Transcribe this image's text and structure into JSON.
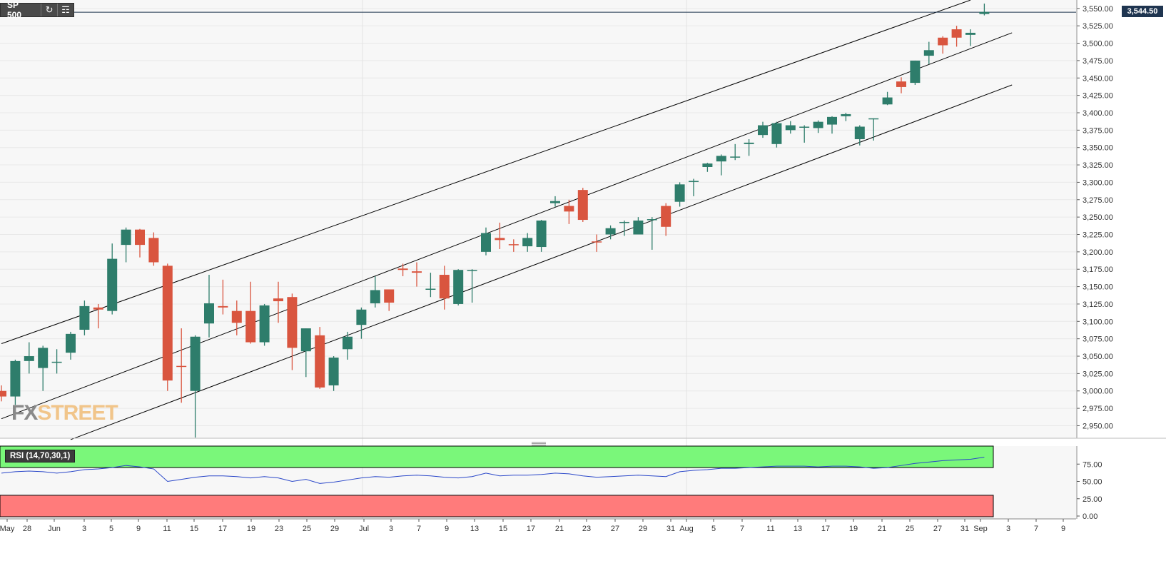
{
  "header": {
    "symbol": "SP 500",
    "refresh_icon": "refresh-icon",
    "settings_icon": "indicators-icon"
  },
  "last_price_label": "3,544.50",
  "watermark": {
    "part1": "FX",
    "part2": "STREET"
  },
  "rsi_label": "RSI (14,70,30,1)",
  "colors": {
    "up": "#2e7d6b",
    "down": "#d9553f",
    "grid": "#e8e8e8",
    "panel_bg": "#f7f7f7",
    "channel": "#000000",
    "rsi_overbought": "#7af77a",
    "rsi_oversold": "#ff7b7b",
    "rsi_line": "#2a47c9",
    "last_price_tag": "#1f3550"
  },
  "chart_data": [
    {
      "type": "candlestick",
      "title": "SP 500",
      "y_ticks": [
        "3,550.00",
        "3,525.00",
        "3,500.00",
        "3,475.00",
        "3,450.00",
        "3,425.00",
        "3,400.00",
        "3,375.00",
        "3,350.00",
        "3,325.00",
        "3,300.00",
        "3,275.00",
        "3,250.00",
        "3,225.00",
        "3,200.00",
        "3,175.00",
        "3,150.00",
        "3,125.00",
        "3,100.00",
        "3,075.00",
        "3,050.00",
        "3,025.00",
        "3,000.00",
        "2,975.00",
        "2,950.00"
      ],
      "ylim": [
        2932,
        3557
      ],
      "x_ticks": [
        "May",
        "28",
        "Jun",
        "3",
        "5",
        "9",
        "11",
        "15",
        "17",
        "19",
        "23",
        "25",
        "29",
        "Jul",
        "3",
        "7",
        "9",
        "13",
        "15",
        "17",
        "21",
        "23",
        "27",
        "29",
        "31",
        "Aug",
        "5",
        "7",
        "11",
        "13",
        "17",
        "19",
        "21",
        "25",
        "27",
        "31",
        "Sep",
        "3",
        "7",
        "9"
      ],
      "last_price": 3544.5,
      "candles": [
        {
          "o": 3000,
          "h": 3008,
          "l": 2985,
          "c": 2992
        },
        {
          "o": 2992,
          "h": 3045,
          "l": 2980,
          "c": 3043
        },
        {
          "o": 3043,
          "h": 3070,
          "l": 3025,
          "c": 3050
        },
        {
          "o": 3033,
          "h": 3065,
          "l": 3000,
          "c": 3062
        },
        {
          "o": 3042,
          "h": 3060,
          "l": 3025,
          "c": 3042
        },
        {
          "o": 3055,
          "h": 3085,
          "l": 3045,
          "c": 3082
        },
        {
          "o": 3088,
          "h": 3130,
          "l": 3080,
          "c": 3122
        },
        {
          "o": 3120,
          "h": 3125,
          "l": 3090,
          "c": 3117
        },
        {
          "o": 3115,
          "h": 3212,
          "l": 3110,
          "c": 3190
        },
        {
          "o": 3210,
          "h": 3235,
          "l": 3185,
          "c": 3232
        },
        {
          "o": 3232,
          "h": 3233,
          "l": 3192,
          "c": 3210
        },
        {
          "o": 3220,
          "h": 3228,
          "l": 3180,
          "c": 3185
        },
        {
          "o": 3180,
          "h": 3183,
          "l": 3000,
          "c": 3015
        },
        {
          "o": 3036,
          "h": 3090,
          "l": 2983,
          "c": 3035
        },
        {
          "o": 3000,
          "h": 3080,
          "l": 2933,
          "c": 3078
        },
        {
          "o": 3097,
          "h": 3167,
          "l": 3077,
          "c": 3126
        },
        {
          "o": 3122,
          "h": 3160,
          "l": 3110,
          "c": 3120
        },
        {
          "o": 3115,
          "h": 3130,
          "l": 3080,
          "c": 3098
        },
        {
          "o": 3115,
          "h": 3157,
          "l": 3068,
          "c": 3070
        },
        {
          "o": 3070,
          "h": 3125,
          "l": 3065,
          "c": 3123
        },
        {
          "o": 3133,
          "h": 3157,
          "l": 3098,
          "c": 3129
        },
        {
          "o": 3135,
          "h": 3140,
          "l": 3030,
          "c": 3062
        },
        {
          "o": 3057,
          "h": 3090,
          "l": 3020,
          "c": 3090
        },
        {
          "o": 3080,
          "h": 3092,
          "l": 3003,
          "c": 3005
        },
        {
          "o": 3008,
          "h": 3050,
          "l": 3000,
          "c": 3048
        },
        {
          "o": 3060,
          "h": 3085,
          "l": 3045,
          "c": 3078
        },
        {
          "o": 3095,
          "h": 3120,
          "l": 3075,
          "c": 3117
        },
        {
          "o": 3126,
          "h": 3165,
          "l": 3120,
          "c": 3145
        },
        {
          "o": 3146,
          "h": 3145,
          "l": 3115,
          "c": 3127
        },
        {
          "o": 3176,
          "h": 3183,
          "l": 3165,
          "c": 3174
        },
        {
          "o": 3172,
          "h": 3185,
          "l": 3150,
          "c": 3170
        },
        {
          "o": 3147,
          "h": 3170,
          "l": 3135,
          "c": 3147
        },
        {
          "o": 3167,
          "h": 3180,
          "l": 3117,
          "c": 3133
        },
        {
          "o": 3125,
          "h": 3175,
          "l": 3123,
          "c": 3174
        },
        {
          "o": 3174,
          "h": 3175,
          "l": 3127,
          "c": 3174
        },
        {
          "o": 3200,
          "h": 3235,
          "l": 3195,
          "c": 3227
        },
        {
          "o": 3220,
          "h": 3242,
          "l": 3204,
          "c": 3217
        },
        {
          "o": 3211,
          "h": 3218,
          "l": 3200,
          "c": 3210
        },
        {
          "o": 3208,
          "h": 3227,
          "l": 3200,
          "c": 3220
        },
        {
          "o": 3207,
          "h": 3246,
          "l": 3200,
          "c": 3245
        },
        {
          "o": 3270,
          "h": 3280,
          "l": 3265,
          "c": 3273
        },
        {
          "o": 3266,
          "h": 3275,
          "l": 3240,
          "c": 3258
        },
        {
          "o": 3289,
          "h": 3292,
          "l": 3243,
          "c": 3246
        },
        {
          "o": 3215,
          "h": 3225,
          "l": 3200,
          "c": 3214
        },
        {
          "o": 3225,
          "h": 3238,
          "l": 3218,
          "c": 3234
        },
        {
          "o": 3243,
          "h": 3245,
          "l": 3223,
          "c": 3243
        },
        {
          "o": 3225,
          "h": 3250,
          "l": 3225,
          "c": 3245
        },
        {
          "o": 3247,
          "h": 3250,
          "l": 3203,
          "c": 3247
        },
        {
          "o": 3266,
          "h": 3270,
          "l": 3223,
          "c": 3236
        },
        {
          "o": 3272,
          "h": 3300,
          "l": 3265,
          "c": 3297
        },
        {
          "o": 3302,
          "h": 3305,
          "l": 3280,
          "c": 3302
        },
        {
          "o": 3322,
          "h": 3328,
          "l": 3315,
          "c": 3327
        },
        {
          "o": 3330,
          "h": 3340,
          "l": 3310,
          "c": 3338
        },
        {
          "o": 3337,
          "h": 3355,
          "l": 3332,
          "c": 3337
        },
        {
          "o": 3355,
          "h": 3362,
          "l": 3338,
          "c": 3357
        },
        {
          "o": 3368,
          "h": 3387,
          "l": 3364,
          "c": 3382
        },
        {
          "o": 3355,
          "h": 3387,
          "l": 3350,
          "c": 3385
        },
        {
          "o": 3375,
          "h": 3388,
          "l": 3370,
          "c": 3382
        },
        {
          "o": 3380,
          "h": 3382,
          "l": 3357,
          "c": 3380
        },
        {
          "o": 3378,
          "h": 3389,
          "l": 3371,
          "c": 3387
        },
        {
          "o": 3383,
          "h": 3395,
          "l": 3370,
          "c": 3394
        },
        {
          "o": 3395,
          "h": 3400,
          "l": 3388,
          "c": 3398
        },
        {
          "o": 3362,
          "h": 3382,
          "l": 3353,
          "c": 3380
        },
        {
          "o": 3392,
          "h": 3392,
          "l": 3360,
          "c": 3392
        },
        {
          "o": 3412,
          "h": 3430,
          "l": 3411,
          "c": 3422
        },
        {
          "o": 3445,
          "h": 3451,
          "l": 3428,
          "c": 3437
        },
        {
          "o": 3443,
          "h": 3475,
          "l": 3440,
          "c": 3475
        },
        {
          "o": 3482,
          "h": 3502,
          "l": 3470,
          "c": 3490
        },
        {
          "o": 3508,
          "h": 3510,
          "l": 3485,
          "c": 3497
        },
        {
          "o": 3520,
          "h": 3525,
          "l": 3495,
          "c": 3508
        },
        {
          "o": 3512,
          "h": 3520,
          "l": 3496,
          "c": 3515
        },
        {
          "o": 3542,
          "h": 3557,
          "l": 3540,
          "c": 3545
        }
      ],
      "channel_lines": [
        {
          "from": {
            "i": 0,
            "v": 3068
          },
          "to": {
            "i": 70,
            "v": 3562
          }
        },
        {
          "from": {
            "i": 0,
            "v": 2960
          },
          "to": {
            "i": 73,
            "v": 3515
          }
        },
        {
          "from": {
            "i": 5,
            "v": 2930
          },
          "to": {
            "i": 73,
            "v": 3440
          }
        }
      ]
    },
    {
      "type": "line",
      "title": "RSI (14,70,30,1)",
      "y_ticks": [
        "75.00",
        "50.00",
        "25.00",
        "0.00"
      ],
      "ylim": [
        0,
        100
      ],
      "bands": {
        "overbought": [
          70,
          100
        ],
        "oversold": [
          0,
          30
        ]
      },
      "values": [
        62,
        64,
        65,
        64,
        62,
        64,
        67,
        68,
        70,
        73,
        71,
        68,
        50,
        53,
        56,
        58,
        58,
        57,
        55,
        57,
        55,
        50,
        53,
        47,
        49,
        52,
        55,
        57,
        56,
        58,
        59,
        58,
        56,
        55,
        57,
        62,
        58,
        59,
        59,
        60,
        62,
        61,
        58,
        56,
        57,
        58,
        59,
        58,
        57,
        64,
        66,
        67,
        69,
        69,
        70,
        71,
        72,
        72,
        72,
        71,
        72,
        72,
        71,
        69,
        70,
        73,
        76,
        78,
        80,
        81,
        82,
        85
      ]
    }
  ]
}
